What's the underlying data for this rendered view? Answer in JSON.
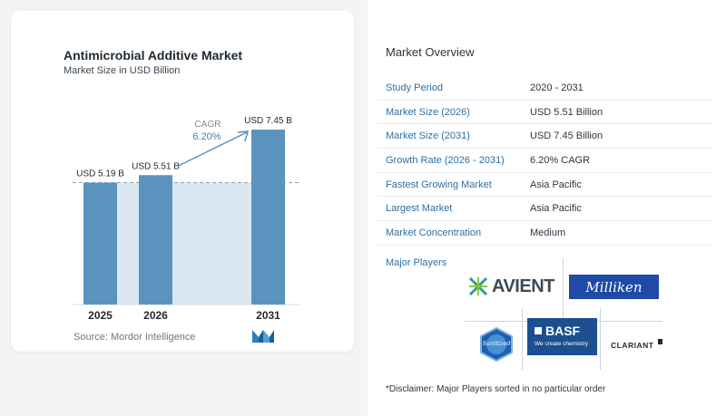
{
  "chart": {
    "title": "Antimicrobial Additive Market",
    "subtitle": "Market Size in USD Billion",
    "source": "Source:  Mordor Intelligence",
    "cagr_label": "CAGR",
    "cagr_value": "6.20%"
  },
  "chart_data": {
    "type": "bar",
    "categories": [
      "2025",
      "2026",
      "2031"
    ],
    "values": [
      5.19,
      5.51,
      7.45
    ],
    "data_labels": [
      "USD 5.19 B",
      "USD 5.51 B",
      "USD 7.45 B"
    ],
    "title": "Antimicrobial Additive Market",
    "subtitle": "Market Size in USD Billion",
    "xlabel": "",
    "ylabel": "",
    "ylim": [
      0,
      7.45
    ],
    "annotations": [
      "CAGR",
      "6.20%"
    ],
    "colors": {
      "bar": "#5a93be",
      "bar_last": "#5a93be",
      "area": "#dbe7f1",
      "arrow": "#5a93be"
    }
  },
  "overview": {
    "title": "Market Overview",
    "rows": [
      {
        "key": "Study Period",
        "value": "2020 - 2031"
      },
      {
        "key": "Market Size (2026)",
        "value": "USD 5.51 Billion"
      },
      {
        "key": "Market Size (2031)",
        "value": "USD 7.45 Billion"
      },
      {
        "key": "Growth Rate (2026 - 2031)",
        "value": "6.20% CAGR"
      },
      {
        "key": "Fastest Growing Market",
        "value": "Asia Pacific"
      },
      {
        "key": "Largest Market",
        "value": "Asia Pacific"
      },
      {
        "key": "Market Concentration",
        "value": "Medium"
      }
    ]
  },
  "players": {
    "title": "Major Players",
    "avient": "AVIENT",
    "milliken": "Milliken",
    "sanitized": "Sanitized",
    "basf": "BASF",
    "basf_tagline": "We create chemistry",
    "clariant": "CLARIANT"
  },
  "disclaimer": "*Disclaimer: Major Players sorted in no particular order",
  "colors": {
    "accent": "#2e6fa3",
    "bar": "#5a93be"
  }
}
